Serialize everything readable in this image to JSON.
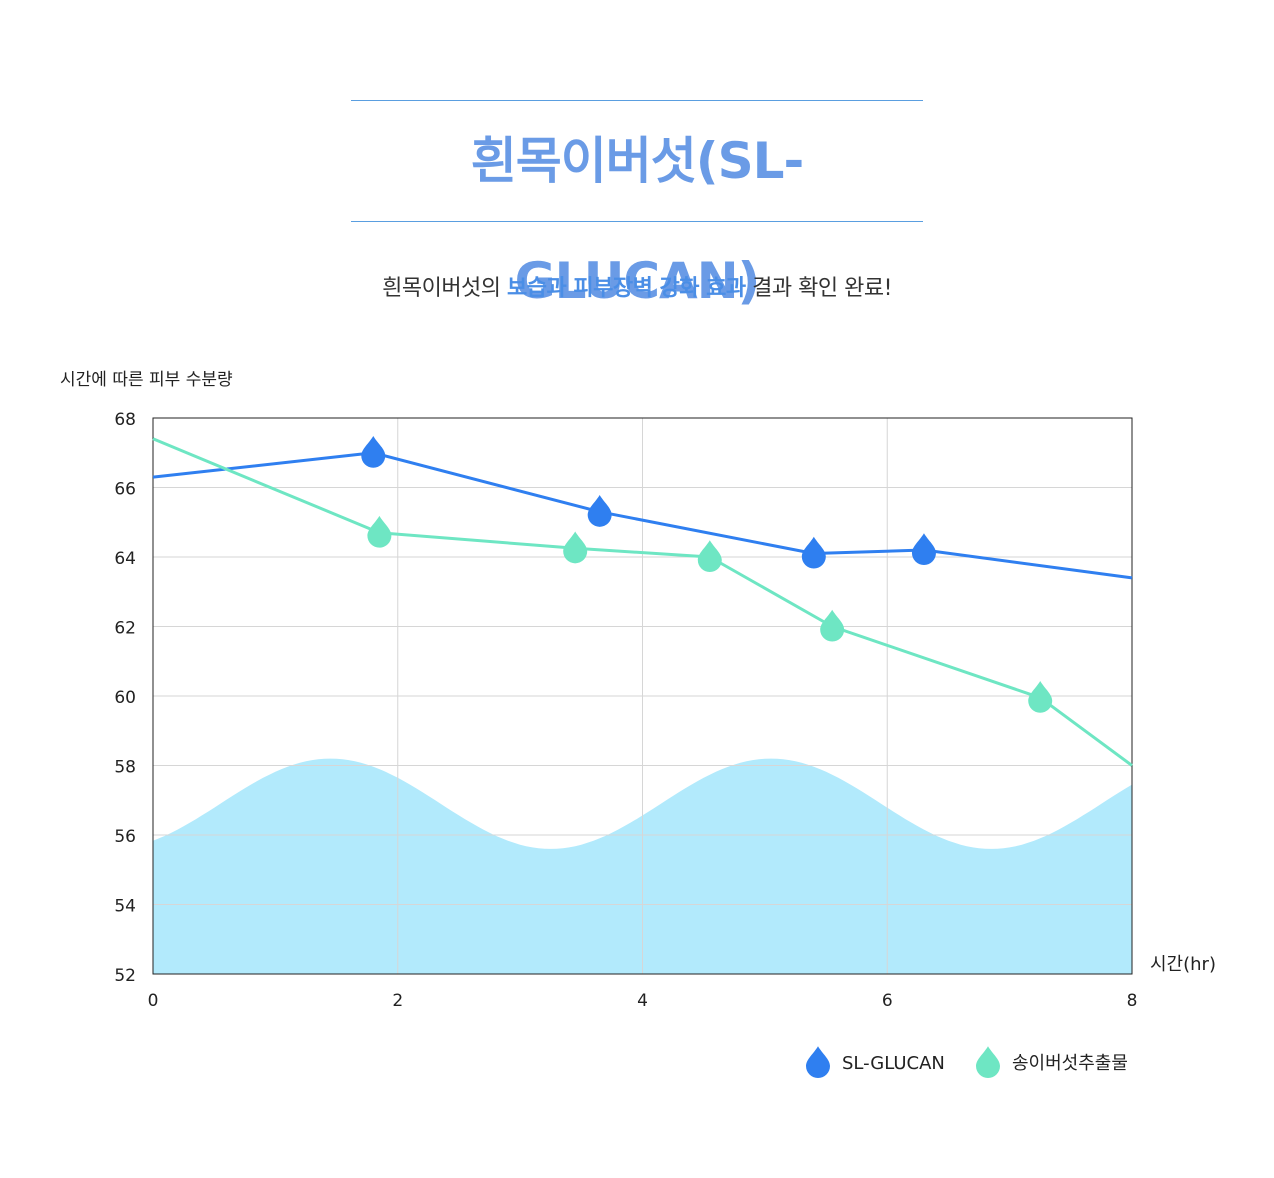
{
  "header": {
    "title": "흰목이버섯(SL-GLUCAN)",
    "subtitle_pre": "흰목이버섯의 ",
    "subtitle_highlight": "보습과 피부장벽 강화 효과",
    "subtitle_post": " 결과 확인 완료!"
  },
  "chart_data": {
    "type": "line",
    "ylabel": "시간에 따른 피부 수분량",
    "xlabel": "시간(hr)",
    "xlim": [
      0,
      8
    ],
    "ylim": [
      52,
      68
    ],
    "x_ticks": [
      "0",
      "2",
      "4",
      "6",
      "8"
    ],
    "y_ticks": [
      "68",
      "66",
      "64",
      "62",
      "60",
      "58",
      "56",
      "54",
      "52"
    ],
    "grid": true,
    "legend_position": "bottom-right",
    "series": [
      {
        "name": "SL-GLUCAN",
        "color": "#2f7ff0",
        "line": [
          [
            0,
            66.3
          ],
          [
            1.8,
            67.0
          ],
          [
            3.65,
            65.3
          ],
          [
            5.4,
            64.1
          ],
          [
            6.3,
            64.2
          ],
          [
            8,
            63.4
          ]
        ],
        "markers": [
          [
            1.8,
            67.0
          ],
          [
            3.65,
            65.3
          ],
          [
            5.4,
            64.1
          ],
          [
            6.3,
            64.2
          ]
        ]
      },
      {
        "name": "송이버섯추출물",
        "color": "#6ee6c3",
        "line": [
          [
            0,
            67.4
          ],
          [
            1.85,
            64.7
          ],
          [
            3.45,
            64.25
          ],
          [
            4.55,
            64.0
          ],
          [
            5.55,
            62.0
          ],
          [
            7.25,
            59.95
          ],
          [
            8,
            58.0
          ]
        ],
        "markers": [
          [
            1.85,
            64.7
          ],
          [
            3.45,
            64.25
          ],
          [
            4.55,
            64.0
          ],
          [
            5.55,
            62.0
          ],
          [
            7.25,
            59.95
          ]
        ]
      }
    ],
    "background_wave_color": "#b2eafc"
  }
}
